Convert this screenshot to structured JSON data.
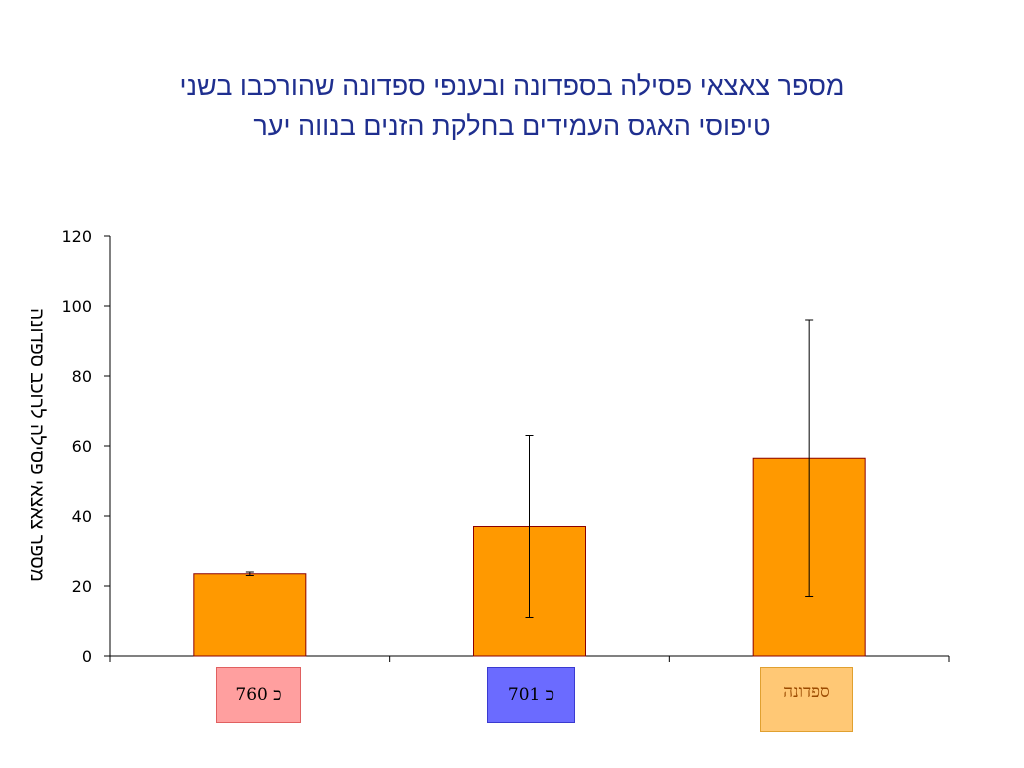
{
  "chart_data": {
    "type": "bar",
    "title_lines": [
      "מספר צאצאי פסילה בספדונה ובענפי ספדונה שהורכבו בשני",
      "טיפוסי האגס העמידים בחלקת הזנים בנווה יער"
    ],
    "ylabel": "מספר צאצאי פסילה לרוכב ספדונה",
    "xlabel": "",
    "ylim": [
      0,
      120
    ],
    "yticks": [
      0,
      20,
      40,
      60,
      80,
      100,
      120
    ],
    "categories": [
      "כ 760",
      "כ 701",
      "ספדונה"
    ],
    "values": [
      23.5,
      37,
      56.5
    ],
    "error_low": [
      23,
      11,
      17
    ],
    "error_high": [
      24,
      63,
      96
    ],
    "grid": false,
    "legend": "none",
    "bar_color": "#ff9900",
    "bar_edge": "#8b0000",
    "category_box_colors": [
      "#ff9f9f",
      "#6b6bff",
      "#ffc875"
    ],
    "category_border_colors": [
      "#e06060",
      "#3a3ad0",
      "#e0a030"
    ],
    "category_text_colors": [
      "#000000",
      "#000000",
      "#9b4a00"
    ]
  }
}
